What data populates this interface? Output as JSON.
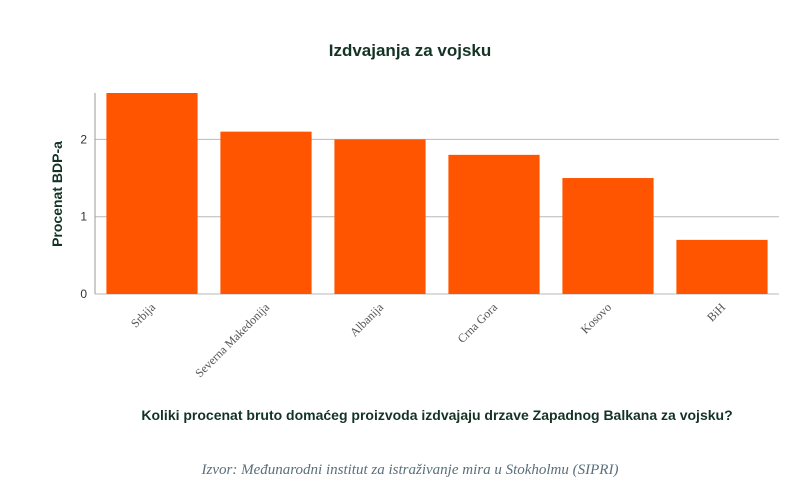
{
  "chart_data": {
    "type": "bar",
    "title": "Izdvajanja za vojsku",
    "ylabel": "Procenat BDP-a",
    "xlabel": "",
    "categories": [
      "Srbija",
      "Severna Makedonija",
      "Albanija",
      "Crna Gora",
      "Kosovo",
      "BiH"
    ],
    "values": [
      2.6,
      2.1,
      2.0,
      1.8,
      1.5,
      0.7
    ],
    "ylim": [
      0,
      2.6
    ],
    "yticks": [
      "0",
      "1",
      "2"
    ],
    "grid": true,
    "bar_color": "#ff5500",
    "subtitle": "Koliki procenat bruto domaćeg proizvoda izdvajaju drzave Zapadnog Balkana za vojsku?",
    "source": "Izvor: Međunarodni institut za istraživanje mira u Stokholmu (SIPRI)"
  }
}
